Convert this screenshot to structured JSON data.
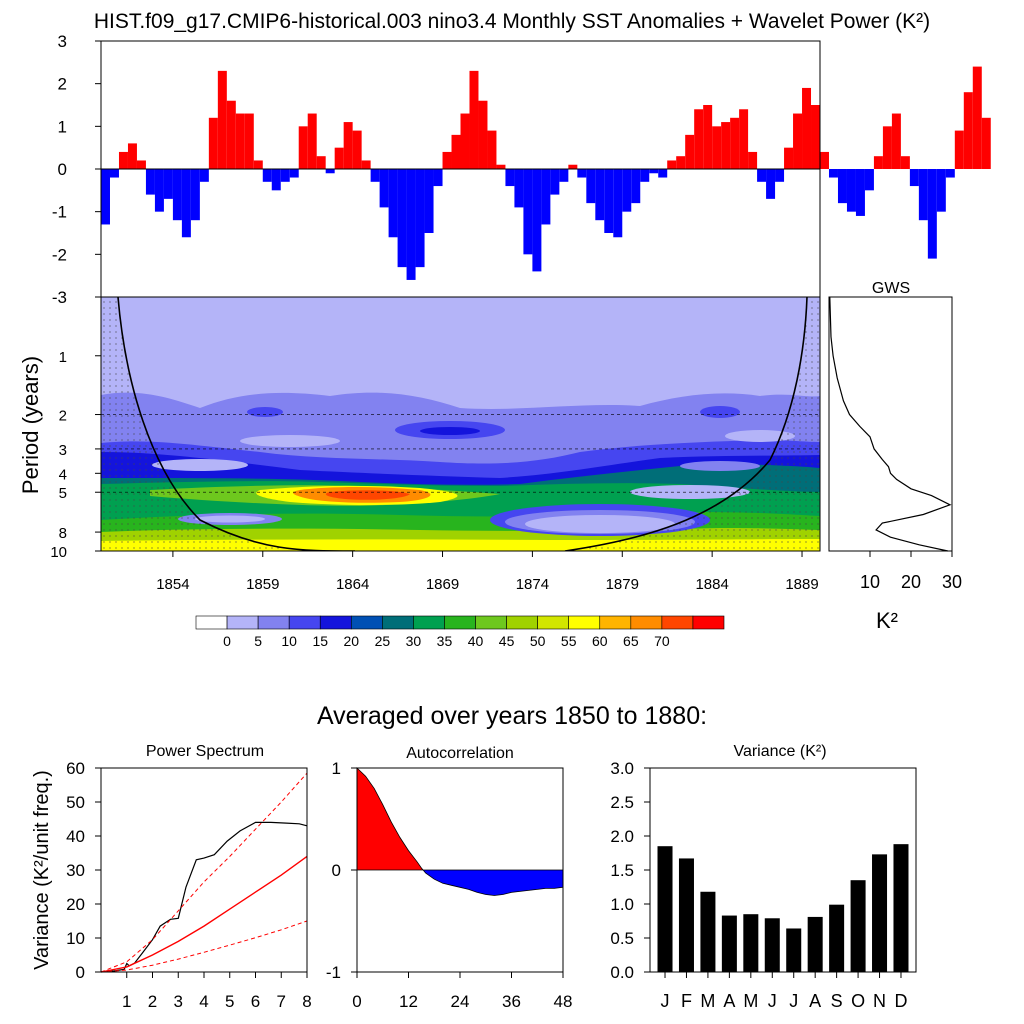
{
  "figure": {
    "title": "HIST.f09_g17.CMIP6-historical.003 nino3.4 Monthly SST Anomalies + Wavelet Power (K²)",
    "subtitle": "Averaged over years 1850 to 1880:"
  },
  "colors": {
    "positive": "#ff0000",
    "negative": "#0000ff",
    "bar": "#000000",
    "dashed_red": "#ff0000"
  },
  "chart_data": [
    {
      "type": "area",
      "name": "sst-anomalies",
      "ylim": [
        -3,
        3
      ],
      "yticks": [
        -3,
        -2,
        -1,
        0,
        1,
        2,
        3
      ],
      "xlim": [
        1850,
        1890
      ],
      "x_step_years": 0.5,
      "x_start": 1850.0,
      "values": [
        -1.3,
        -0.2,
        0.4,
        0.6,
        0.2,
        -0.6,
        -1.0,
        -0.7,
        -1.2,
        -1.6,
        -1.2,
        -0.3,
        1.2,
        2.3,
        1.6,
        1.3,
        1.3,
        0.2,
        -0.3,
        -0.5,
        -0.3,
        -0.2,
        1.0,
        1.3,
        0.3,
        -0.1,
        0.5,
        1.1,
        0.9,
        0.2,
        -0.3,
        -0.9,
        -1.6,
        -2.3,
        -2.6,
        -2.3,
        -1.5,
        -0.4,
        0.4,
        0.8,
        1.3,
        2.3,
        1.6,
        0.9,
        0.1,
        -0.4,
        -0.9,
        -2.0,
        -2.4,
        -1.3,
        -0.6,
        -0.3,
        0.1,
        -0.2,
        -0.8,
        -1.2,
        -1.5,
        -1.6,
        -1.0,
        -0.8,
        -0.3,
        -0.1,
        -0.2,
        0.2,
        0.3,
        0.8,
        1.4,
        1.5,
        1.0,
        1.1,
        1.2,
        1.4,
        0.4,
        -0.3,
        -0.7,
        -0.3,
        0.5,
        1.3,
        1.9,
        1.5,
        0.4,
        -0.2,
        -0.8,
        -1.0,
        -1.1,
        -0.5,
        0.3,
        1.0,
        1.3,
        0.3,
        -0.4,
        -1.2,
        -2.1,
        -1.0,
        -0.2,
        0.9,
        1.8,
        2.4,
        1.2
      ],
      "ylabel": ""
    },
    {
      "type": "heatmap",
      "name": "wavelet-power",
      "ylabel": "Period (years)",
      "yticks": [
        1,
        2,
        3,
        4,
        5,
        8,
        10
      ],
      "ylim": [
        0.5,
        10
      ],
      "xlim": [
        1850,
        1890
      ],
      "xticks": [
        1854,
        1859,
        1864,
        1869,
        1874,
        1879,
        1884,
        1889
      ],
      "levels": [
        0,
        5,
        10,
        15,
        20,
        25,
        30,
        35,
        40,
        45,
        50,
        55,
        60,
        65,
        70
      ],
      "colorbar_labels": [
        "0",
        "5",
        "10",
        "15",
        "20",
        "25",
        "30",
        "35",
        "40",
        "45",
        "50",
        "55",
        "60",
        "65",
        "70"
      ],
      "colors": [
        "#ffffff",
        "#b4b4f8",
        "#8282f0",
        "#4646f0",
        "#1414dc",
        "#0050b4",
        "#006e78",
        "#00a050",
        "#28b41e",
        "#6ec81e",
        "#a0d200",
        "#d2e600",
        "#ffff00",
        "#ffb400",
        "#ff8c00",
        "#ff4600",
        "#ff0000"
      ],
      "significance_contour_periods": [
        2,
        3,
        5
      ]
    },
    {
      "type": "line",
      "name": "global-wavelet-spectrum",
      "title": "GWS",
      "xlabel": "K²",
      "xlim": [
        0,
        30
      ],
      "xticks": [
        10,
        20,
        30
      ],
      "period": [
        0.5,
        0.8,
        1.0,
        1.3,
        1.7,
        2.0,
        2.3,
        2.6,
        3.0,
        3.4,
        3.7,
        4.0,
        4.3,
        4.8,
        5.2,
        5.8,
        6.5,
        7.2,
        7.8,
        8.5,
        9.3,
        10.0
      ],
      "power": [
        0.2,
        0.5,
        1.0,
        2.0,
        3.5,
        5.0,
        7.5,
        10.0,
        11.0,
        13.0,
        14.5,
        15.0,
        16.5,
        20.0,
        25.0,
        29.5,
        23.0,
        13.0,
        11.5,
        15.0,
        22.0,
        29.0
      ]
    },
    {
      "type": "line",
      "name": "power-spectrum",
      "title": "Power Spectrum",
      "ylabel": "Variance (K²/unit freq.)",
      "ylim": [
        0,
        60
      ],
      "yticks": [
        0,
        10,
        20,
        30,
        40,
        50,
        60
      ],
      "xlim": [
        0,
        8
      ],
      "xticks": [
        1,
        2,
        3,
        4,
        5,
        6,
        7,
        8
      ],
      "series": [
        {
          "x": [
            0,
            0.5,
            0.9,
            1.0,
            1.1,
            1.3,
            1.6,
            2.0,
            2.3,
            2.7,
            3.0,
            3.3,
            3.7,
            4.0,
            4.4,
            4.9,
            5.4,
            6.0,
            6.6,
            7.2,
            7.7,
            8.0
          ],
          "y": [
            0,
            0.3,
            0.8,
            2.5,
            1.8,
            2.6,
            5.5,
            9.5,
            13.5,
            15.5,
            15.8,
            25.0,
            33.0,
            33.5,
            34.5,
            38.5,
            41.5,
            44.0,
            44.0,
            43.8,
            43.6,
            43.0
          ]
        },
        {
          "x": [
            0,
            1,
            2,
            3,
            4,
            5,
            6,
            7,
            8
          ],
          "y": [
            0,
            1.5,
            5,
            9,
            13.5,
            18.5,
            23.5,
            28.5,
            34
          ]
        },
        {
          "x": [
            0,
            1,
            2,
            3,
            4,
            5,
            6,
            7,
            8
          ],
          "y": [
            0,
            3.0,
            9.5,
            18,
            26.5,
            34,
            42,
            50,
            58.5
          ]
        },
        {
          "x": [
            0,
            1,
            2,
            3,
            4,
            5,
            6,
            7,
            8
          ],
          "y": [
            0,
            0.6,
            2.0,
            3.8,
            5.8,
            7.9,
            10.1,
            12.4,
            15
          ]
        }
      ]
    },
    {
      "type": "area",
      "name": "autocorrelation",
      "title": "Autocorrelation",
      "ylim": [
        -1,
        1
      ],
      "yticks": [
        -1,
        0,
        1
      ],
      "xlim": [
        0,
        48
      ],
      "xticks": [
        0,
        12,
        24,
        36,
        48
      ],
      "x": [
        0,
        2,
        4,
        6,
        8,
        10,
        12,
        14,
        15,
        16,
        18,
        20,
        22,
        24,
        26,
        28,
        30,
        32,
        34,
        36,
        38,
        40,
        42,
        44,
        46,
        48
      ],
      "y": [
        1.0,
        0.92,
        0.8,
        0.64,
        0.47,
        0.32,
        0.19,
        0.08,
        0.02,
        -0.03,
        -0.09,
        -0.13,
        -0.15,
        -0.17,
        -0.19,
        -0.22,
        -0.24,
        -0.25,
        -0.24,
        -0.22,
        -0.21,
        -0.2,
        -0.19,
        -0.18,
        -0.18,
        -0.17
      ]
    },
    {
      "type": "bar",
      "name": "monthly-variance",
      "title": "Variance (K²)",
      "categories": [
        "J",
        "F",
        "M",
        "A",
        "M",
        "J",
        "J",
        "A",
        "S",
        "O",
        "N",
        "D"
      ],
      "values": [
        1.85,
        1.67,
        1.18,
        0.83,
        0.85,
        0.79,
        0.64,
        0.81,
        0.99,
        1.35,
        1.73,
        1.88
      ],
      "ylim": [
        0,
        3
      ],
      "yticks": [
        "0.0",
        "0.5",
        "1.0",
        "1.5",
        "2.0",
        "2.5",
        "3.0"
      ]
    }
  ]
}
